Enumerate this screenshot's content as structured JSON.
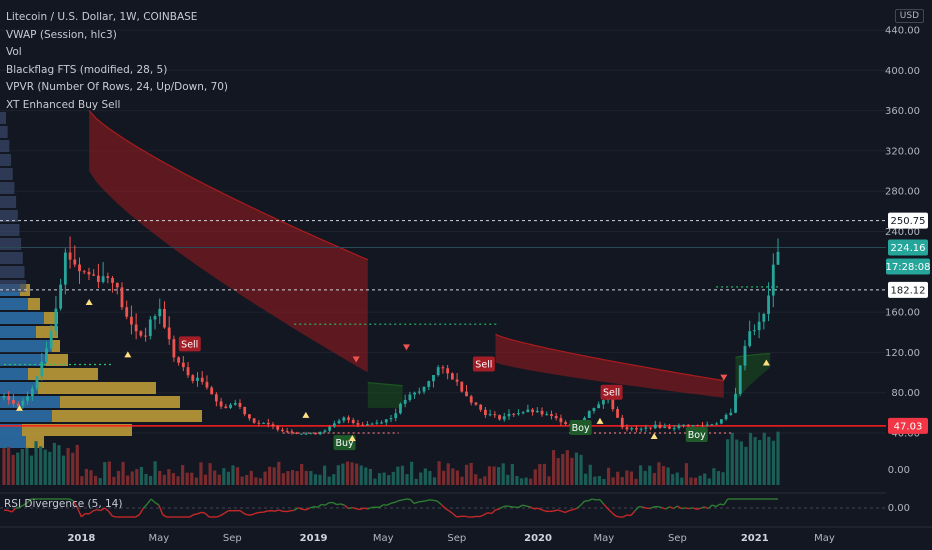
{
  "legend": {
    "title": "Litecoin / U.S. Dollar, 1W, COINBASE",
    "items": [
      "VWAP (Session, hlc3)",
      "Vol",
      "Blackflag FTS (modified, 28, 5)",
      "VPVR (Number Of Rows, 24, Up/Down, 70)",
      "XT Enhanced Buy Sell"
    ]
  },
  "currency_button": "USD",
  "rsi_label": "RSI Divergence (5, 14)",
  "colors": {
    "background": "#131722",
    "up": "#26a69a",
    "down": "#ef5350",
    "band_red": "#b71c1c",
    "band_green": "#1b5e20",
    "volume_up": "#1b5e57",
    "volume_down": "#7a2b2e",
    "support_line": "#ff1e1e",
    "price_tag": "#26a69a",
    "support_tag": "#f23645",
    "rsi_line": "#2e7d32",
    "rsi_neg": "#c62828"
  },
  "chart_data": {
    "type": "line",
    "symbol": "LTCUSD",
    "interval": "1W",
    "exchange": "COINBASE",
    "x_tick_labels": [
      "2018",
      "May",
      "Sep",
      "2019",
      "May",
      "Sep",
      "2020",
      "May",
      "Sep",
      "2021",
      "May"
    ],
    "y_tick_labels": [
      "440.00",
      "400.00",
      "360.00",
      "320.00",
      "280.00",
      "240.00",
      "160.00",
      "120.00",
      "80.00",
      "40.00"
    ],
    "ylim": [
      30,
      460
    ],
    "volume_axis_label": "0.00",
    "rsi_axis_label": "0.00",
    "price_markers": {
      "resistance": "250.75",
      "last_price": "224.16",
      "countdown": "17:28:08",
      "level": "182.12",
      "support": "47.03"
    },
    "levels": {
      "resistance": 250.75,
      "last_price": 224.16,
      "level": 182.12,
      "support": 47.03
    },
    "signals": [
      {
        "label": "Sell",
        "t": 0.24,
        "price": 128
      },
      {
        "label": "Buy",
        "t": 0.44,
        "price": 30
      },
      {
        "label": "Sell",
        "t": 0.62,
        "price": 108
      },
      {
        "label": "Boy",
        "t": 0.745,
        "price": 45
      },
      {
        "label": "Sell",
        "t": 0.785,
        "price": 80
      },
      {
        "label": "Boy",
        "t": 0.895,
        "price": 38
      }
    ],
    "series": [
      {
        "values_t": [
          0.0,
          0.02,
          0.04,
          0.06,
          0.08,
          0.1,
          0.12,
          0.14,
          0.16,
          0.18,
          0.2,
          0.22,
          0.24,
          0.26,
          0.28,
          0.3,
          0.32,
          0.34,
          0.36,
          0.38,
          0.4,
          0.42,
          0.44,
          0.46,
          0.48,
          0.5,
          0.52,
          0.54,
          0.56,
          0.58,
          0.6,
          0.62,
          0.64,
          0.66,
          0.68,
          0.7,
          0.72,
          0.74,
          0.76,
          0.78,
          0.8,
          0.82,
          0.84,
          0.86,
          0.88,
          0.9,
          0.92,
          0.94,
          0.96,
          0.98,
          1.0
        ],
        "values": [
          75,
          65,
          88,
          140,
          220,
          200,
          195,
          195,
          150,
          135,
          165,
          115,
          95,
          90,
          65,
          70,
          52,
          48,
          43,
          40,
          39,
          45,
          55,
          48,
          50,
          55,
          75,
          82,
          105,
          95,
          75,
          60,
          55,
          60,
          62,
          58,
          52,
          45,
          65,
          75,
          45,
          43,
          47,
          45,
          48,
          47,
          50,
          60,
          140,
          150,
          224
        ]
      }
    ]
  }
}
